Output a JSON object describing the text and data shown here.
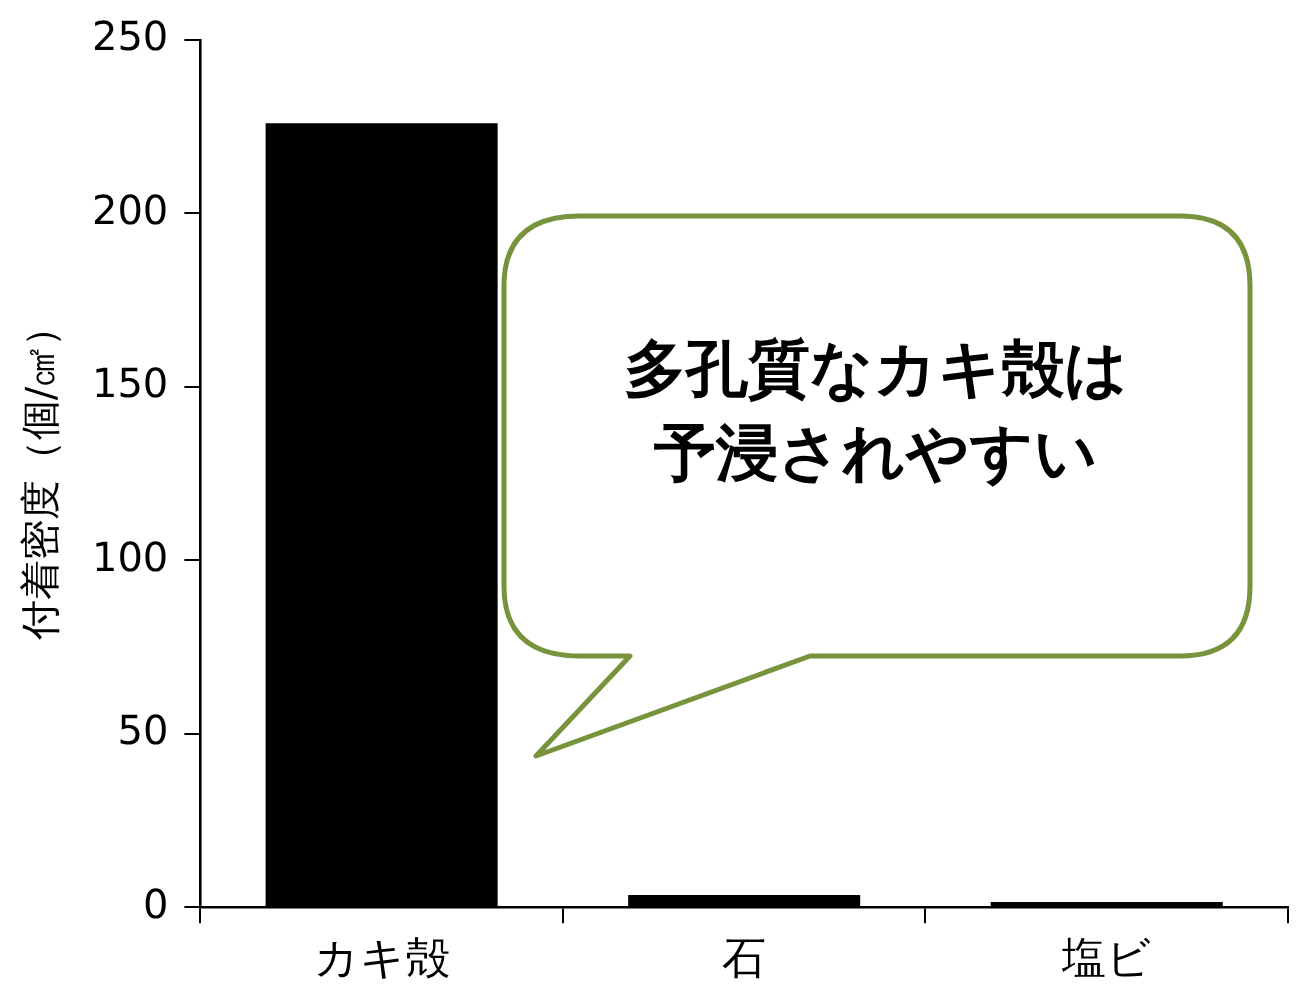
{
  "chart_data": {
    "type": "bar",
    "ylabel": "付着密度（個/㎠）",
    "categories": [
      "カキ殻",
      "石",
      "塩ビ"
    ],
    "values": [
      226,
      3.5,
      1.5
    ],
    "color": "#000000",
    "ylim": [
      0,
      250
    ],
    "yticks": [
      0,
      50,
      100,
      150,
      200,
      250
    ],
    "grid": false,
    "legend": false,
    "annotations": [
      "多孔質なカキ殻は予浸されやすい"
    ]
  }
}
